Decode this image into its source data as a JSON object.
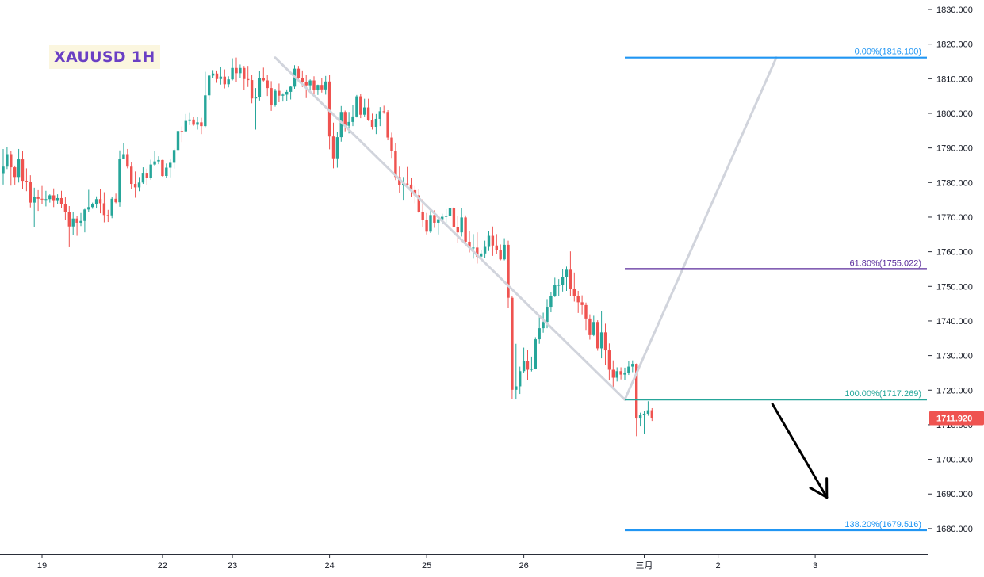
{
  "chart_data": {
    "type": "candlestick",
    "title": "XAUUSD 1H",
    "y_axis": {
      "side": "right",
      "range": [
        1672.5,
        1833.0
      ],
      "ticks": [
        "1680.000",
        "1690.000",
        "1700.000",
        "1710.000",
        "1720.000",
        "1730.000",
        "1740.000",
        "1750.000",
        "1760.000",
        "1770.000",
        "1780.000",
        "1790.000",
        "1800.000",
        "1810.000",
        "1820.000",
        "1830.000"
      ]
    },
    "x_axis": {
      "ticks": [
        {
          "label": "19",
          "bar": 10
        },
        {
          "label": "22",
          "bar": 41
        },
        {
          "label": "23",
          "bar": 59
        },
        {
          "label": "24",
          "bar": 84
        },
        {
          "label": "25",
          "bar": 109
        },
        {
          "label": "26",
          "bar": 134
        },
        {
          "label": "三月",
          "bar": 165
        },
        {
          "label": "2",
          "bar": 184
        },
        {
          "label": "3",
          "bar": 209
        }
      ]
    },
    "last_price": "1711.920",
    "colors": {
      "up": "#26a69a",
      "down": "#ef5350",
      "fib_top": "#2196f3",
      "fib_618": "#5b2d9c",
      "fib_100": "#26a69a",
      "fib_1382": "#2196f3",
      "trend": "#d1d4dc",
      "arrow": "#000000",
      "price_tag": "#ef5350"
    },
    "fib_levels": [
      {
        "label": "0.00%(1816.100)",
        "price": 1816.1,
        "color": "#2196f3"
      },
      {
        "label": "61.80%(1755.022)",
        "price": 1755.022,
        "color": "#5b2d9c"
      },
      {
        "label": "100.00%(1717.269)",
        "price": 1717.269,
        "color": "#26a69a"
      },
      {
        "label": "138.20%(1679.516)",
        "price": 1679.516,
        "color": "#2196f3"
      }
    ],
    "fib_start_bar": 160,
    "trend_lines": [
      {
        "from": {
          "bar": 70,
          "price": 1816.1
        },
        "to": {
          "bar": 160,
          "price": 1717.27
        }
      },
      {
        "from": {
          "bar": 160,
          "price": 1717.27
        },
        "to": {
          "bar": 199,
          "price": 1816.1
        }
      }
    ],
    "arrow": {
      "from": {
        "bar": 198,
        "price": 1716
      },
      "to": {
        "bar": 212,
        "price": 1689
      }
    },
    "candles": [
      [
        1782.7,
        1789.7,
        1779.4,
        1784.6
      ],
      [
        1784.6,
        1790.3,
        1783.9,
        1788.2
      ],
      [
        1788.2,
        1789.1,
        1779.1,
        1784.4
      ],
      [
        1784.4,
        1784.9,
        1779.4,
        1781.6
      ],
      [
        1781.6,
        1789.7,
        1780.0,
        1786.7
      ],
      [
        1786.7,
        1789.0,
        1778.2,
        1780.5
      ],
      [
        1780.5,
        1784.1,
        1777.5,
        1780.2
      ],
      [
        1780.2,
        1782.1,
        1772.8,
        1774.2
      ],
      [
        1774.2,
        1778.5,
        1767.2,
        1775.8
      ],
      [
        1775.8,
        1777.8,
        1771.8,
        1775.3
      ],
      [
        1775.3,
        1779.0,
        1773.7,
        1775.2
      ],
      [
        1775.2,
        1777.6,
        1773.1,
        1775.2
      ],
      [
        1775.2,
        1776.6,
        1774.2,
        1776.3
      ],
      [
        1776.3,
        1778.3,
        1772.9,
        1774.9
      ],
      [
        1774.9,
        1776.6,
        1773.7,
        1775.5
      ],
      [
        1775.5,
        1777.6,
        1772.6,
        1773.7
      ],
      [
        1773.7,
        1775.7,
        1769.3,
        1771.5
      ],
      [
        1771.5,
        1773.2,
        1761.3,
        1767.3
      ],
      [
        1767.3,
        1771.6,
        1764.8,
        1769.6
      ],
      [
        1769.6,
        1770.3,
        1764.6,
        1768.4
      ],
      [
        1768.4,
        1771.2,
        1767.4,
        1768.9
      ],
      [
        1768.9,
        1772.4,
        1765.6,
        1772.2
      ],
      [
        1772.2,
        1777.9,
        1771.5,
        1772.9
      ],
      [
        1772.9,
        1774.2,
        1772.4,
        1773.7
      ],
      [
        1773.7,
        1776.0,
        1772.5,
        1775.2
      ],
      [
        1775.2,
        1778.0,
        1771.1,
        1774.0
      ],
      [
        1774.0,
        1777.2,
        1768.5,
        1770.6
      ],
      [
        1770.6,
        1772.1,
        1768.6,
        1770.5
      ],
      [
        1770.5,
        1775.9,
        1769.7,
        1775.3
      ],
      [
        1775.3,
        1776.8,
        1774.0,
        1774.3
      ],
      [
        1774.3,
        1789.3,
        1773.0,
        1786.8
      ],
      [
        1786.8,
        1791.5,
        1786.8,
        1788.2
      ],
      [
        1788.2,
        1789.7,
        1784.1,
        1784.6
      ],
      [
        1784.6,
        1785.9,
        1778.1,
        1779.6
      ],
      [
        1779.6,
        1783.2,
        1775.6,
        1778.6
      ],
      [
        1778.6,
        1781.6,
        1777.5,
        1780.0
      ],
      [
        1780.0,
        1784.4,
        1779.6,
        1782.8
      ],
      [
        1782.8,
        1784.0,
        1779.3,
        1781.3
      ],
      [
        1781.3,
        1786.6,
        1780.8,
        1785.2
      ],
      [
        1785.2,
        1789.0,
        1784.9,
        1786.1
      ],
      [
        1786.1,
        1787.6,
        1785.3,
        1786.5
      ],
      [
        1786.5,
        1786.6,
        1781.7,
        1781.9
      ],
      [
        1781.9,
        1785.5,
        1781.4,
        1784.3
      ],
      [
        1784.3,
        1786.7,
        1781.5,
        1785.7
      ],
      [
        1785.7,
        1789.8,
        1784.0,
        1789.4
      ],
      [
        1789.4,
        1796.6,
        1789.3,
        1794.9
      ],
      [
        1794.9,
        1796.2,
        1791.7,
        1794.8
      ],
      [
        1794.8,
        1799.8,
        1794.7,
        1797.8
      ],
      [
        1797.8,
        1800.3,
        1796.6,
        1798.2
      ],
      [
        1798.2,
        1798.9,
        1796.4,
        1796.7
      ],
      [
        1796.7,
        1799.0,
        1795.3,
        1797.4
      ],
      [
        1797.4,
        1798.7,
        1794.0,
        1796.3
      ],
      [
        1796.3,
        1812.0,
        1796.0,
        1805.2
      ],
      [
        1805.2,
        1811.0,
        1803.9,
        1810.9
      ],
      [
        1810.9,
        1812.5,
        1810.1,
        1811.5
      ],
      [
        1811.5,
        1812.4,
        1808.8,
        1809.9
      ],
      [
        1809.9,
        1813.3,
        1808.3,
        1810.6
      ],
      [
        1810.6,
        1812.7,
        1807.2,
        1808.4
      ],
      [
        1808.4,
        1810.7,
        1807.5,
        1809.8
      ],
      [
        1809.8,
        1815.9,
        1809.5,
        1813.1
      ],
      [
        1813.1,
        1816.1,
        1809.1,
        1811.6
      ],
      [
        1811.6,
        1814.1,
        1810.1,
        1813.1
      ],
      [
        1813.1,
        1813.7,
        1806.8,
        1809.9
      ],
      [
        1809.9,
        1813.7,
        1807.6,
        1809.6
      ],
      [
        1809.6,
        1811.2,
        1802.9,
        1804.3
      ],
      [
        1804.3,
        1807.3,
        1795.3,
        1804.8
      ],
      [
        1804.8,
        1812.3,
        1803.7,
        1810.1
      ],
      [
        1810.1,
        1813.2,
        1809.2,
        1809.5
      ],
      [
        1809.5,
        1811.1,
        1805.0,
        1807.3
      ],
      [
        1807.3,
        1809.3,
        1800.7,
        1802.5
      ],
      [
        1802.5,
        1807.1,
        1801.9,
        1806.5
      ],
      [
        1806.5,
        1808.6,
        1803.2,
        1805.1
      ],
      [
        1805.1,
        1805.8,
        1803.4,
        1805.4
      ],
      [
        1805.4,
        1806.9,
        1803.6,
        1806.2
      ],
      [
        1806.2,
        1808.0,
        1804.0,
        1807.7
      ],
      [
        1807.7,
        1813.9,
        1807.1,
        1812.9
      ],
      [
        1812.9,
        1813.7,
        1809.4,
        1810.2
      ],
      [
        1810.2,
        1812.4,
        1807.6,
        1809.0
      ],
      [
        1809.0,
        1811.1,
        1804.4,
        1808.1
      ],
      [
        1808.1,
        1809.8,
        1806.5,
        1809.5
      ],
      [
        1809.5,
        1810.7,
        1805.0,
        1806.7
      ],
      [
        1806.7,
        1808.3,
        1805.3,
        1808.2
      ],
      [
        1808.2,
        1810.3,
        1806.0,
        1806.9
      ],
      [
        1806.9,
        1810.8,
        1805.4,
        1809.2
      ],
      [
        1809.2,
        1811.0,
        1789.6,
        1793.3
      ],
      [
        1793.3,
        1797.3,
        1784.1,
        1787.0
      ],
      [
        1787.0,
        1794.6,
        1784.3,
        1793.1
      ],
      [
        1793.1,
        1802.1,
        1791.8,
        1800.4
      ],
      [
        1800.4,
        1800.8,
        1794.8,
        1796.4
      ],
      [
        1796.4,
        1800.4,
        1794.2,
        1797.5
      ],
      [
        1797.5,
        1802.5,
        1796.3,
        1799.1
      ],
      [
        1799.1,
        1805.3,
        1798.8,
        1804.9
      ],
      [
        1804.9,
        1805.7,
        1798.6,
        1799.6
      ],
      [
        1799.6,
        1804.2,
        1799.1,
        1801.7
      ],
      [
        1801.7,
        1804.2,
        1797.8,
        1798.0
      ],
      [
        1798.0,
        1799.9,
        1795.3,
        1796.1
      ],
      [
        1796.1,
        1799.8,
        1794.0,
        1798.4
      ],
      [
        1798.4,
        1801.8,
        1796.3,
        1800.6
      ],
      [
        1800.6,
        1802.2,
        1799.9,
        1800.4
      ],
      [
        1800.4,
        1800.9,
        1792.2,
        1793.0
      ],
      [
        1793.0,
        1794.4,
        1787.1,
        1789.1
      ],
      [
        1789.1,
        1791.4,
        1780.7,
        1781.6
      ],
      [
        1781.6,
        1784.6,
        1777.1,
        1779.3
      ],
      [
        1779.3,
        1781.6,
        1775.0,
        1779.7
      ],
      [
        1779.7,
        1784.5,
        1779.4,
        1779.4
      ],
      [
        1779.4,
        1781.3,
        1775.8,
        1777.8
      ],
      [
        1777.8,
        1779.0,
        1774.0,
        1776.3
      ],
      [
        1776.3,
        1778.1,
        1771.2,
        1771.4
      ],
      [
        1771.4,
        1775.2,
        1767.1,
        1769.1
      ],
      [
        1769.1,
        1771.2,
        1765.0,
        1765.8
      ],
      [
        1765.8,
        1772.0,
        1765.4,
        1770.6
      ],
      [
        1770.6,
        1772.0,
        1766.9,
        1768.4
      ],
      [
        1768.4,
        1770.1,
        1765.0,
        1769.4
      ],
      [
        1769.4,
        1771.0,
        1767.9,
        1770.1
      ],
      [
        1770.1,
        1772.3,
        1767.1,
        1770.3
      ],
      [
        1770.3,
        1776.3,
        1770.1,
        1772.7
      ],
      [
        1772.7,
        1773.0,
        1767.1,
        1767.2
      ],
      [
        1767.2,
        1770.3,
        1762.5,
        1765.6
      ],
      [
        1765.6,
        1772.7,
        1764.4,
        1769.9
      ],
      [
        1769.9,
        1770.5,
        1761.8,
        1762.9
      ],
      [
        1762.9,
        1766.1,
        1759.8,
        1761.1
      ],
      [
        1761.1,
        1765.1,
        1758.0,
        1761.2
      ],
      [
        1761.2,
        1765.6,
        1756.6,
        1758.6
      ],
      [
        1758.6,
        1760.6,
        1757.9,
        1759.5
      ],
      [
        1759.5,
        1763.2,
        1758.3,
        1761.4
      ],
      [
        1761.4,
        1765.9,
        1760.2,
        1764.6
      ],
      [
        1764.6,
        1767.3,
        1758.8,
        1761.8
      ],
      [
        1761.8,
        1765.1,
        1759.3,
        1760.5
      ],
      [
        1760.5,
        1762.1,
        1757.5,
        1757.8
      ],
      [
        1757.8,
        1763.9,
        1757.5,
        1762.0
      ],
      [
        1762.0,
        1763.2,
        1743.7,
        1746.7
      ],
      [
        1746.7,
        1747.2,
        1717.3,
        1720.1
      ],
      [
        1720.1,
        1733.4,
        1717.3,
        1721.1
      ],
      [
        1721.1,
        1726.8,
        1718.9,
        1725.5
      ],
      [
        1725.5,
        1732.3,
        1725.0,
        1728.4
      ],
      [
        1728.4,
        1731.5,
        1722.8,
        1725.9
      ],
      [
        1725.9,
        1729.7,
        1725.4,
        1726.2
      ],
      [
        1726.2,
        1735.3,
        1726.0,
        1734.7
      ],
      [
        1734.7,
        1741.8,
        1733.4,
        1737.9
      ],
      [
        1737.9,
        1742.4,
        1736.6,
        1739.7
      ],
      [
        1739.7,
        1746.3,
        1737.9,
        1744.1
      ],
      [
        1744.1,
        1748.4,
        1742.5,
        1747.1
      ],
      [
        1747.1,
        1752.5,
        1746.9,
        1750.3
      ],
      [
        1750.3,
        1752.1,
        1747.1,
        1750.4
      ],
      [
        1750.4,
        1755.0,
        1748.5,
        1752.7
      ],
      [
        1752.7,
        1755.7,
        1748.7,
        1754.8
      ],
      [
        1754.8,
        1760.1,
        1747.1,
        1749.3
      ],
      [
        1749.3,
        1754.0,
        1745.6,
        1747.2
      ],
      [
        1747.2,
        1748.7,
        1742.3,
        1745.4
      ],
      [
        1745.4,
        1747.4,
        1741.9,
        1744.6
      ],
      [
        1744.6,
        1745.3,
        1737.4,
        1740.7
      ],
      [
        1740.7,
        1741.9,
        1734.6,
        1735.9
      ],
      [
        1735.9,
        1741.5,
        1735.6,
        1739.7
      ],
      [
        1739.7,
        1740.2,
        1731.4,
        1732.1
      ],
      [
        1732.1,
        1742.9,
        1729.2,
        1736.7
      ],
      [
        1736.7,
        1739.2,
        1727.2,
        1731.5
      ],
      [
        1731.5,
        1733.5,
        1722.8,
        1725.9
      ],
      [
        1725.9,
        1728.6,
        1720.2,
        1723.6
      ],
      [
        1723.6,
        1726.6,
        1722.5,
        1725.5
      ],
      [
        1725.5,
        1726.6,
        1723.1,
        1724.5
      ],
      [
        1724.5,
        1726.5,
        1723.0,
        1725.0
      ],
      [
        1725.0,
        1728.5,
        1724.4,
        1726.8
      ],
      [
        1726.8,
        1728.6,
        1725.2,
        1727.6
      ],
      [
        1727.6,
        1727.7,
        1706.7,
        1711.8
      ],
      [
        1711.8,
        1713.5,
        1709.5,
        1712.8
      ],
      [
        1712.8,
        1714.1,
        1707.3,
        1713.2
      ],
      [
        1713.2,
        1716.8,
        1712.6,
        1714.2
      ],
      [
        1714.2,
        1714.8,
        1711.1,
        1711.9
      ]
    ]
  }
}
